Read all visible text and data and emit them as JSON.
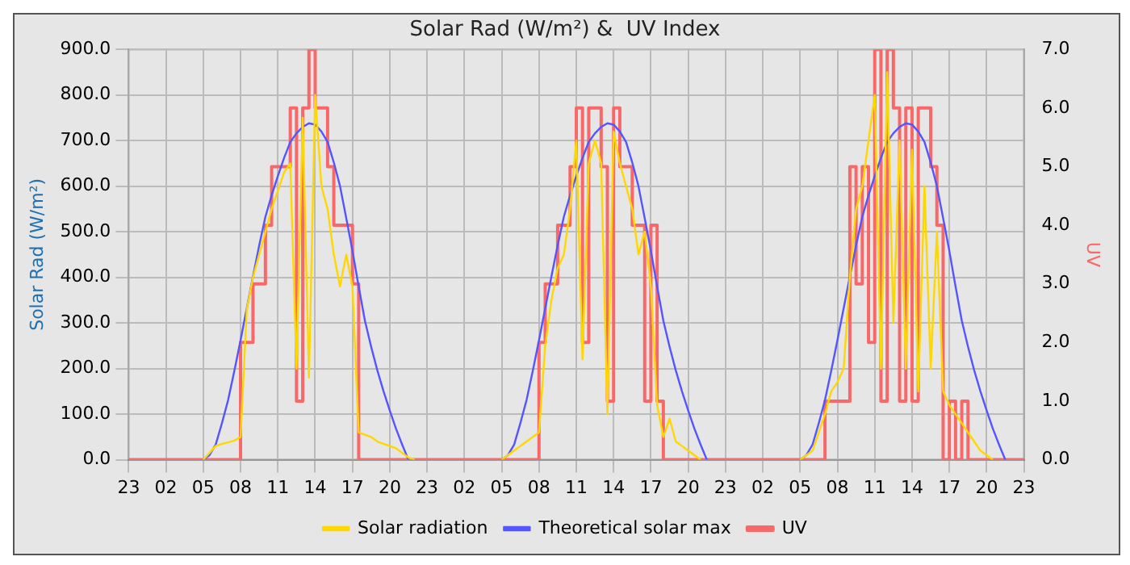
{
  "chart_data": {
    "type": "line",
    "title": "Solar Rad (W/m²) &  UV Index",
    "ylabel": "Solar Rad (W/m²)",
    "y2label": "UV",
    "categories": [
      "23",
      null,
      null,
      null,
      null,
      null,
      "02",
      null,
      null,
      null,
      null,
      null,
      "05",
      null,
      null,
      null,
      null,
      null,
      "08",
      null,
      null,
      null,
      null,
      null,
      "11",
      null,
      null,
      null,
      null,
      null,
      "14",
      null,
      null,
      null,
      null,
      null,
      "17",
      null,
      null,
      null,
      null,
      null,
      "20",
      null,
      null,
      null,
      null,
      null,
      "23",
      null,
      null,
      null,
      null,
      null,
      "02",
      null,
      null,
      null,
      null,
      null,
      "05",
      null,
      null,
      null,
      null,
      null,
      "08",
      null,
      null,
      null,
      null,
      null,
      "11",
      null,
      null,
      null,
      null,
      null,
      "14",
      null,
      null,
      null,
      null,
      null,
      "17",
      null,
      null,
      null,
      null,
      null,
      "20",
      null,
      null,
      null,
      null,
      null,
      "23",
      null,
      null,
      null,
      null,
      null,
      "02",
      null,
      null,
      null,
      null,
      null,
      "05",
      null,
      null,
      null,
      null,
      null,
      "08",
      null,
      null,
      null,
      null,
      null,
      "11",
      null,
      null,
      null,
      null,
      null,
      "14",
      null,
      null,
      null,
      null,
      null,
      "17",
      null,
      null,
      null,
      null,
      null,
      "20",
      null,
      null,
      null,
      null,
      null,
      "23"
    ],
    "ylim": [
      0,
      900
    ],
    "yticks": [
      {
        "value": 0,
        "label": "0.0"
      },
      {
        "value": 100,
        "label": "100.0"
      },
      {
        "value": 200,
        "label": "200.0"
      },
      {
        "value": 300,
        "label": "300.0"
      },
      {
        "value": 400,
        "label": "400.0"
      },
      {
        "value": 500,
        "label": "500.0"
      },
      {
        "value": 600,
        "label": "600.0"
      },
      {
        "value": 700,
        "label": "700.0"
      },
      {
        "value": 800,
        "label": "800.0"
      },
      {
        "value": 900,
        "label": "900.0"
      }
    ],
    "y2lim": [
      0,
      7
    ],
    "y2ticks": [
      {
        "value": 0,
        "label": "0.0"
      },
      {
        "value": 1,
        "label": "1.0"
      },
      {
        "value": 2,
        "label": "2.0"
      },
      {
        "value": 3,
        "label": "3.0"
      },
      {
        "value": 4,
        "label": "4.0"
      },
      {
        "value": 5,
        "label": "5.0"
      },
      {
        "value": 6,
        "label": "6.0"
      },
      {
        "value": 7,
        "label": "7.0"
      }
    ],
    "grid": true,
    "legend": "bottom",
    "marker": "none",
    "series": [
      {
        "name": "Solar radiation",
        "color": "#ffd700",
        "values": [
          null,
          null,
          null,
          null,
          null,
          null,
          null,
          null,
          null,
          null,
          null,
          null,
          0,
          15,
          30,
          35,
          38,
          42,
          50,
          330,
          400,
          450,
          500,
          550,
          590,
          630,
          650,
          200,
          750,
          180,
          800,
          600,
          550,
          450,
          380,
          450,
          380,
          60,
          55,
          50,
          40,
          35,
          30,
          25,
          15,
          5,
          0,
          null,
          null,
          null,
          null,
          null,
          null,
          null,
          null,
          null,
          null,
          null,
          null,
          null,
          0,
          10,
          20,
          30,
          40,
          50,
          60,
          250,
          350,
          420,
          450,
          550,
          700,
          220,
          650,
          700,
          650,
          100,
          720,
          650,
          600,
          550,
          450,
          500,
          380,
          120,
          50,
          90,
          40,
          30,
          20,
          10,
          0,
          null,
          null,
          null,
          null,
          null,
          null,
          null,
          null,
          null,
          null,
          null,
          null,
          null,
          null,
          null,
          0,
          10,
          20,
          60,
          100,
          150,
          170,
          200,
          400,
          550,
          600,
          700,
          800,
          200,
          850,
          300,
          700,
          200,
          680,
          150,
          600,
          200,
          500,
          150,
          120,
          100,
          80,
          60,
          40,
          20,
          10,
          0,
          null,
          null,
          null,
          null,
          null
        ]
      },
      {
        "name": "Theoretical solar max",
        "color": "#5555ff",
        "values": [
          null,
          null,
          null,
          null,
          null,
          null,
          null,
          null,
          null,
          null,
          null,
          null,
          0,
          10,
          33,
          80,
          131,
          195,
          262,
          332,
          402,
          470,
          533,
          580,
          622,
          662,
          697,
          716,
          730,
          738,
          735,
          720,
          697,
          652,
          600,
          530,
          458,
          380,
          305,
          248,
          196,
          150,
          108,
          68,
          33,
          0,
          null,
          null,
          null,
          null,
          null,
          null,
          null,
          null,
          null,
          null,
          null,
          null,
          null,
          null,
          0,
          10,
          33,
          80,
          131,
          195,
          262,
          332,
          402,
          470,
          533,
          580,
          622,
          662,
          697,
          716,
          730,
          738,
          735,
          720,
          697,
          652,
          600,
          530,
          458,
          380,
          305,
          248,
          196,
          150,
          108,
          68,
          33,
          0,
          null,
          null,
          null,
          null,
          null,
          null,
          null,
          null,
          null,
          null,
          null,
          null,
          null,
          null,
          0,
          10,
          33,
          80,
          131,
          195,
          262,
          332,
          402,
          470,
          533,
          580,
          622,
          662,
          697,
          716,
          730,
          738,
          735,
          720,
          697,
          652,
          600,
          530,
          458,
          380,
          305,
          248,
          196,
          150,
          108,
          68,
          33,
          0,
          null,
          null,
          null
        ]
      },
      {
        "name": "UV",
        "color": "#f86868",
        "type": "step",
        "axis": "y2",
        "values": [
          0,
          0,
          0,
          0,
          0,
          0,
          0,
          0,
          0,
          0,
          0,
          0,
          0,
          0,
          0,
          0,
          0,
          0,
          2,
          2,
          3,
          3,
          4,
          5,
          5,
          5,
          6,
          1,
          6,
          7,
          6,
          6,
          5,
          4,
          4,
          4,
          3,
          0,
          0,
          0,
          0,
          0,
          0,
          0,
          0,
          0,
          0,
          0,
          0,
          0,
          0,
          0,
          0,
          0,
          0,
          0,
          0,
          0,
          0,
          0,
          0,
          0,
          0,
          0,
          0,
          0,
          2,
          3,
          3,
          4,
          4,
          5,
          6,
          2,
          6,
          6,
          5,
          1,
          6,
          5,
          5,
          4,
          4,
          1,
          4,
          1,
          0,
          0,
          0,
          0,
          0,
          0,
          0,
          0,
          0,
          0,
          0,
          0,
          0,
          0,
          0,
          0,
          0,
          0,
          0,
          0,
          0,
          0,
          0,
          0,
          0,
          0,
          1,
          1,
          1,
          1,
          5,
          3,
          5,
          2,
          7,
          1,
          7,
          6,
          1,
          6,
          1,
          6,
          6,
          5,
          4,
          0,
          1,
          0,
          1,
          0,
          0,
          0,
          0,
          0,
          0,
          0,
          0,
          0,
          0
        ]
      }
    ]
  }
}
